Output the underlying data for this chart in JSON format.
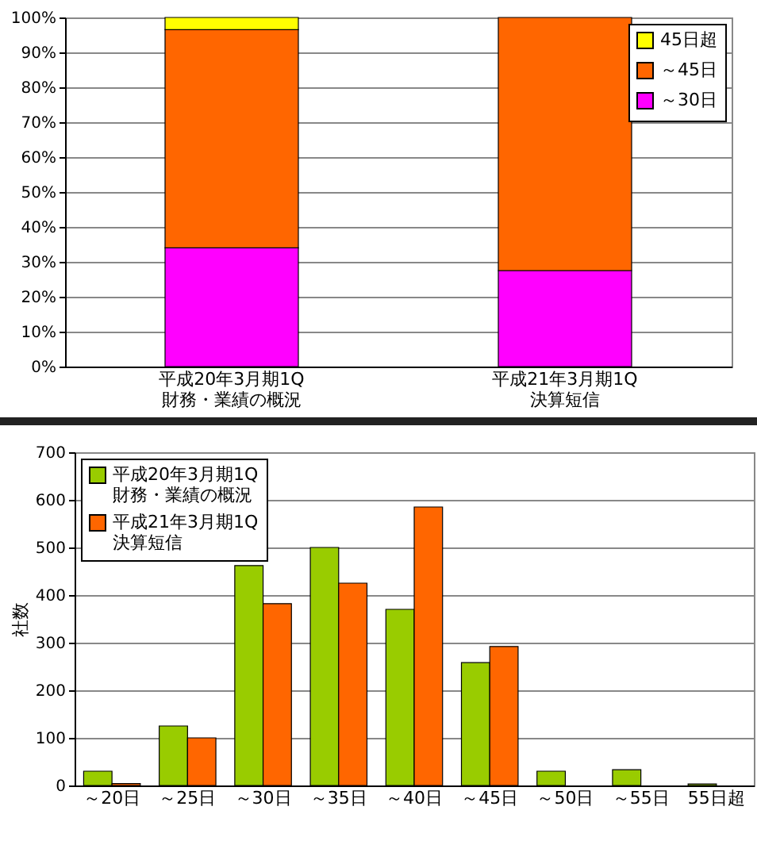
{
  "chart_data": [
    {
      "type": "bar",
      "stacked": true,
      "categories": [
        "平成20年3月期1Q\n財務・業績の概況",
        "平成21年3月期1Q\n決算短信"
      ],
      "series": [
        {
          "name": "～30日",
          "color": "#ff00ff",
          "values": [
            34,
            27.5
          ]
        },
        {
          "name": "～45日",
          "color": "#ff6600",
          "values": [
            62.5,
            72.5
          ]
        },
        {
          "name": "45日超",
          "color": "#ffff00",
          "values": [
            3.5,
            null
          ]
        }
      ],
      "ylim": [
        0,
        100
      ],
      "yticks": [
        {
          "value": 0,
          "label": "0%"
        },
        {
          "value": 10,
          "label": "10%"
        },
        {
          "value": 20,
          "label": "20%"
        },
        {
          "value": 30,
          "label": "30%"
        },
        {
          "value": 40,
          "label": "40%"
        },
        {
          "value": 50,
          "label": "50%"
        },
        {
          "value": 60,
          "label": "60%"
        },
        {
          "value": 70,
          "label": "70%"
        },
        {
          "value": 80,
          "label": "80%"
        },
        {
          "value": 90,
          "label": "90%"
        },
        {
          "value": 100,
          "label": "100%"
        }
      ],
      "grid": "y",
      "legend": "top right"
    },
    {
      "type": "bar",
      "categories": [
        "～20日",
        "～25日",
        "～30日",
        "～35日",
        "～40日",
        "～45日",
        "～50日",
        "～55日",
        "55日超"
      ],
      "series": [
        {
          "name": "平成20年3月期1Q\n財務・業績の概況",
          "color": "#99cc00",
          "values": [
            30,
            125,
            462,
            500,
            370,
            258,
            30,
            33,
            3
          ]
        },
        {
          "name": "平成21年3月期1Q\n決算短信",
          "color": "#ff6600",
          "values": [
            4,
            100,
            382,
            425,
            585,
            292,
            null,
            null,
            null
          ]
        }
      ],
      "ylabel": "社数",
      "ylim": [
        0,
        700
      ],
      "yticks": [
        0,
        100,
        200,
        300,
        400,
        500,
        600,
        700
      ],
      "grid": "y",
      "legend": "top left"
    }
  ]
}
